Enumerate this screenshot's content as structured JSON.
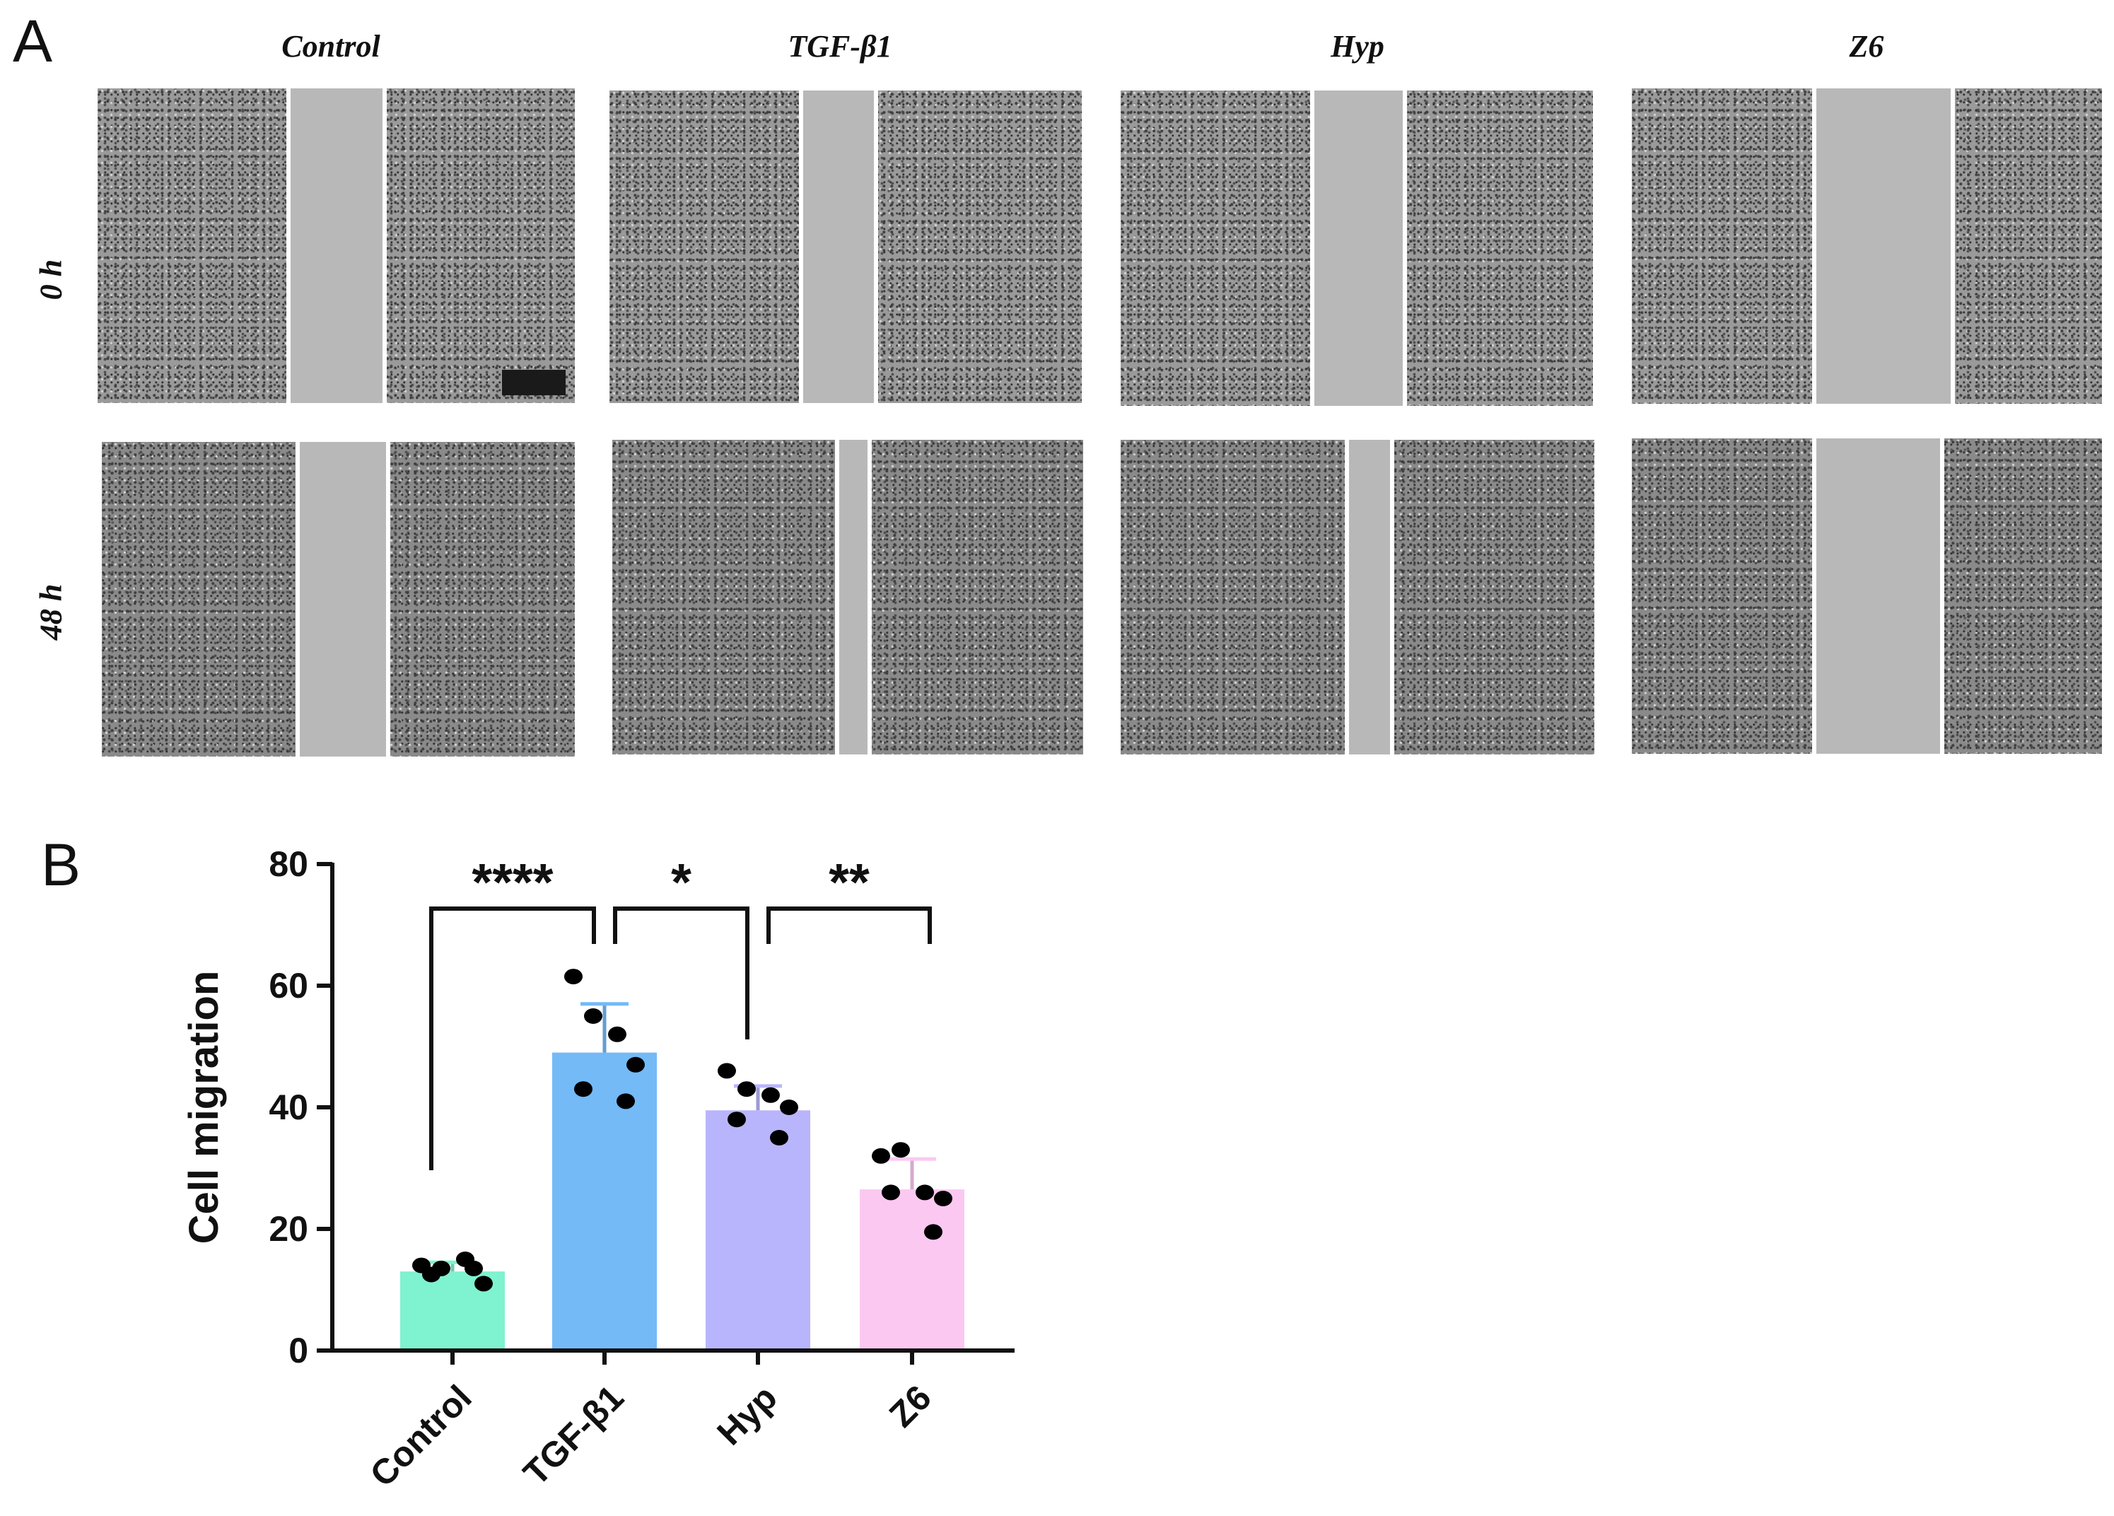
{
  "panel_a": {
    "letter": "A",
    "columns": [
      "Control",
      "TGF-β1",
      "Hyp",
      "Z6"
    ],
    "rows": [
      "0 h",
      "48 h"
    ]
  },
  "panel_b": {
    "letter": "B"
  },
  "chart_data": {
    "type": "bar",
    "categories": [
      "Control",
      "TGF-β1",
      "Hyp",
      "Z6"
    ],
    "values": [
      13,
      49,
      39.5,
      26.5
    ],
    "error": [
      1.5,
      8,
      4,
      5
    ],
    "points": [
      [
        14,
        13.5,
        15,
        11,
        12.5,
        13.5
      ],
      [
        61.5,
        55,
        52,
        47,
        43,
        41
      ],
      [
        46,
        43,
        42,
        40,
        38,
        35
      ],
      [
        32,
        33,
        26,
        25,
        26,
        19.5
      ]
    ],
    "colors": [
      "#7ff2cf",
      "#74baf7",
      "#b9b5fc",
      "#fbc8f2"
    ],
    "title": "",
    "xlabel": "",
    "ylabel": "Cell migration",
    "ylim": [
      0,
      80
    ],
    "yticks": [
      0,
      20,
      40,
      60,
      80
    ],
    "significance": [
      {
        "from": 0,
        "to": 1,
        "label": "****"
      },
      {
        "from": 1,
        "to": 2,
        "label": "*"
      },
      {
        "from": 2,
        "to": 3,
        "label": "**"
      }
    ]
  }
}
